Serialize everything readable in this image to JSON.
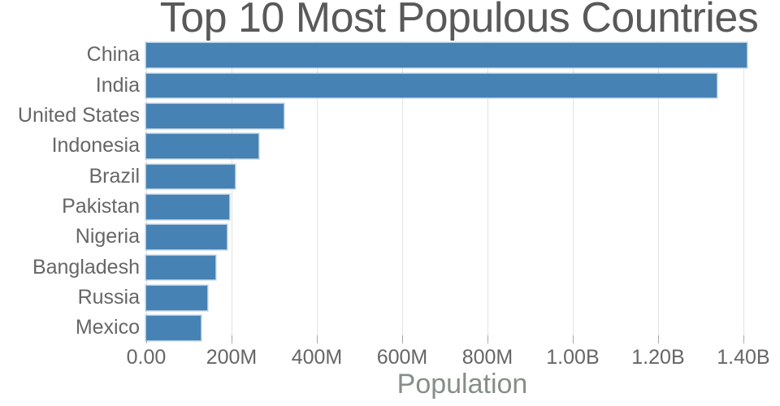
{
  "chart_data": {
    "type": "bar",
    "orientation": "horizontal",
    "title": "Top 10 Most Populous Countries",
    "xlabel": "Population",
    "ylabel": "",
    "categories": [
      "China",
      "India",
      "United States",
      "Indonesia",
      "Brazil",
      "Pakistan",
      "Nigeria",
      "Bangladesh",
      "Russia",
      "Mexico"
    ],
    "values": [
      1409517397,
      1339180127,
      324459463,
      263991379,
      209288278,
      197015955,
      190886311,
      164669751,
      143989754,
      129163276
    ],
    "x_ticks": [
      {
        "value": 0,
        "label": "0.00"
      },
      {
        "value": 200000000,
        "label": "200M"
      },
      {
        "value": 400000000,
        "label": "400M"
      },
      {
        "value": 600000000,
        "label": "600M"
      },
      {
        "value": 800000000,
        "label": "800M"
      },
      {
        "value": 1000000000,
        "label": "1.00B"
      },
      {
        "value": 1200000000,
        "label": "1.20B"
      },
      {
        "value": 1400000000,
        "label": "1.40B"
      }
    ],
    "xlim": [
      0,
      1482000000
    ],
    "grid": "vertical",
    "legend": "none",
    "style": {
      "bar_color": "#4682B4",
      "title_color": "#595959",
      "category_label_color": "#666666",
      "tick_label_color": "#666666",
      "axis_title_color": "#878E87",
      "gridline_color": "#E3E3E3",
      "tick_mark_color": "#A8A8A8",
      "background_color": "#FFFFFF"
    }
  }
}
